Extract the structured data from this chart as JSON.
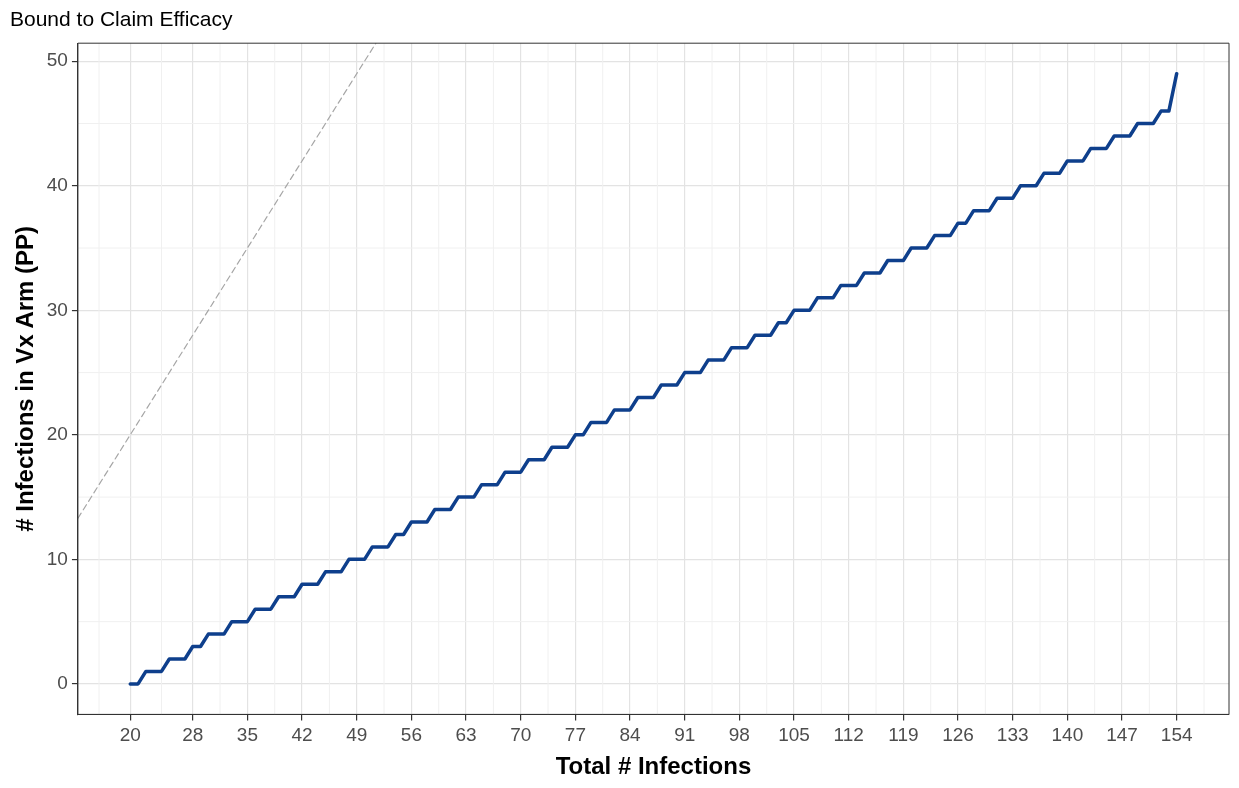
{
  "chart_data": {
    "type": "line",
    "title": "Bound to Claim Efficacy",
    "xlabel": "Total # Infections",
    "ylabel": "# Infections in Vx Arm (PP)",
    "xlim": [
      13.3,
      160.7
    ],
    "ylim": [
      -2.45,
      51.45
    ],
    "xticks": [
      20,
      28,
      35,
      42,
      49,
      56,
      63,
      70,
      77,
      84,
      91,
      98,
      105,
      112,
      119,
      126,
      133,
      140,
      147,
      154
    ],
    "yticks": [
      0,
      10,
      20,
      30,
      40,
      50
    ],
    "grid": true,
    "marker": "none",
    "series": [
      {
        "color": "#0e3f8c",
        "line_style": "solid",
        "x": [
          20,
          21,
          22,
          24,
          25,
          27,
          28,
          29,
          30,
          32,
          33,
          35,
          36,
          38,
          39,
          41,
          42,
          44,
          45,
          47,
          48,
          50,
          51,
          53,
          54,
          55,
          56,
          58,
          59,
          61,
          62,
          64,
          65,
          67,
          68,
          70,
          71,
          73,
          74,
          76,
          77,
          78,
          79,
          81,
          82,
          84,
          85,
          87,
          88,
          90,
          91,
          93,
          94,
          96,
          97,
          99,
          100,
          102,
          103,
          104,
          105,
          107,
          108,
          110,
          111,
          113,
          114,
          116,
          117,
          119,
          120,
          122,
          123,
          125,
          126,
          127,
          128,
          130,
          131,
          133,
          134,
          136,
          137,
          139,
          140,
          142,
          143,
          145,
          146,
          148,
          149,
          151,
          152,
          153,
          154
        ],
        "values": [
          0,
          0,
          1,
          1,
          2,
          2,
          3,
          3,
          4,
          4,
          5,
          5,
          6,
          6,
          7,
          7,
          8,
          8,
          9,
          9,
          10,
          10,
          11,
          11,
          12,
          12,
          13,
          13,
          14,
          14,
          15,
          15,
          16,
          16,
          17,
          17,
          18,
          18,
          19,
          19,
          20,
          20,
          21,
          21,
          22,
          22,
          23,
          23,
          24,
          24,
          25,
          25,
          26,
          26,
          27,
          27,
          28,
          28,
          29,
          29,
          30,
          30,
          31,
          31,
          32,
          32,
          33,
          33,
          34,
          34,
          35,
          35,
          36,
          36,
          37,
          37,
          38,
          38,
          39,
          39,
          40,
          40,
          41,
          41,
          42,
          42,
          43,
          43,
          44,
          44,
          45,
          45,
          46,
          46,
          49
        ]
      },
      {
        "color": "#a6a6a6",
        "line_style": "dashed",
        "x": [
          13.3,
          51.45
        ],
        "values": [
          13.3,
          51.45
        ]
      }
    ]
  }
}
